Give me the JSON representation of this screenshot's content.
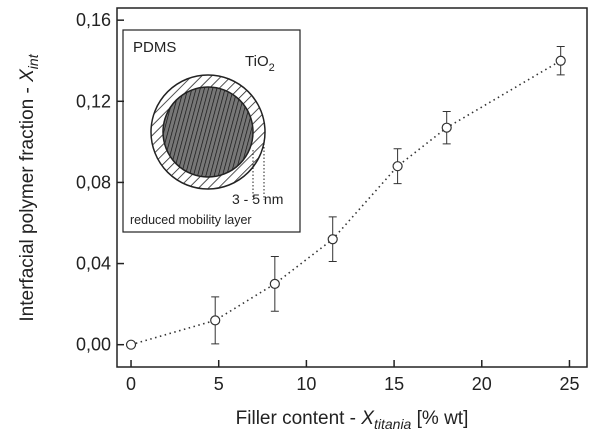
{
  "chart_data": {
    "type": "scatter",
    "x_label": {
      "text": "Filler content - ",
      "symbol": "X",
      "subscript": "titania",
      "unit": " [% wt]"
    },
    "y_label": {
      "text": "Interfacial polymer fraction - ",
      "symbol": "X",
      "subscript": "int"
    },
    "x": [
      0,
      4.8,
      8.2,
      11.5,
      15.2,
      18.0,
      24.5
    ],
    "values": [
      0.0,
      0.012,
      0.03,
      0.052,
      0.088,
      0.107,
      0.14
    ],
    "errors": [
      null,
      0.0116,
      0.0135,
      0.011,
      0.0086,
      0.008,
      0.007
    ],
    "color": "#333333",
    "line_style": "dotted",
    "xlim": [
      -0.8,
      26
    ],
    "xticks": [
      0,
      5,
      10,
      15,
      20,
      25
    ],
    "ylim": [
      -0.011,
      0.166
    ],
    "yticks": [
      {
        "value": 0,
        "label": "0,00"
      },
      {
        "value": 0.04,
        "label": "0,04"
      },
      {
        "value": 0.08,
        "label": "0,08"
      },
      {
        "value": 0.12,
        "label": "0,12"
      },
      {
        "value": 0.16,
        "label": "0,16"
      }
    ],
    "inset": {
      "matrix": "PDMS",
      "filler": "TiO",
      "filler_subscript": "2",
      "thickness": "3 - 5 nm",
      "layer": "reduced mobility layer"
    }
  }
}
